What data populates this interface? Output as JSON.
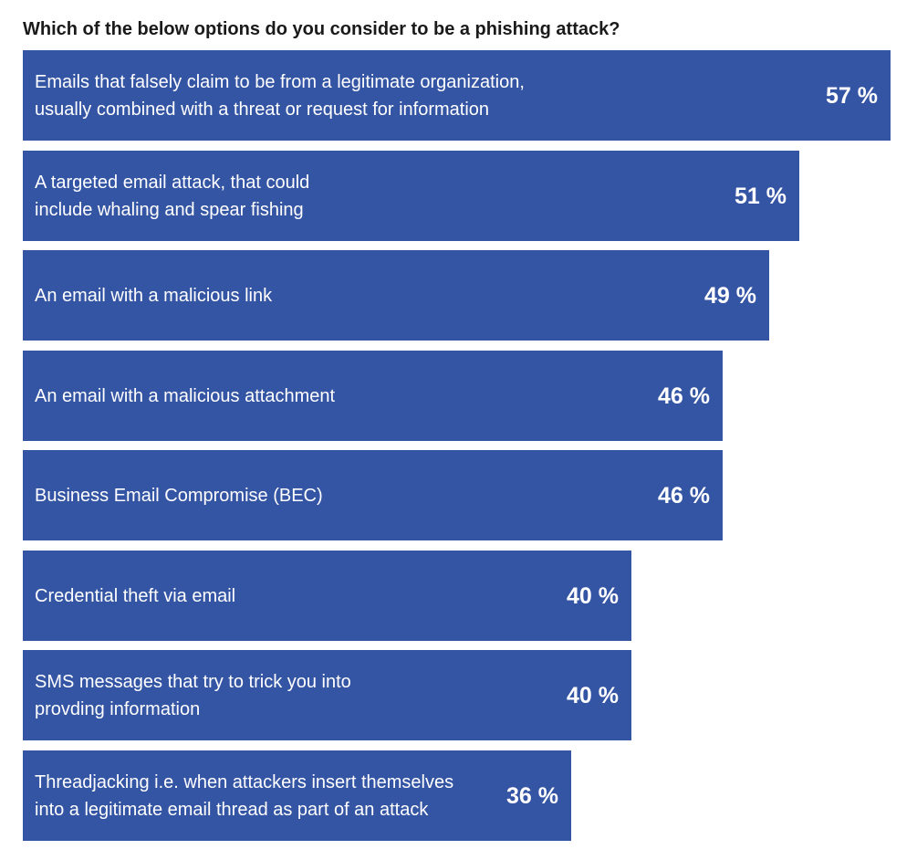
{
  "chart_data": {
    "type": "bar",
    "orientation": "horizontal",
    "title": "Which of the below options do you consider to be a phishing attack?",
    "xlabel": "",
    "ylabel": "",
    "unit": "%",
    "xlim": [
      0,
      57
    ],
    "grid": false,
    "legend": "none",
    "bar_color": "#3454a4",
    "label_color": "#ffffff",
    "categories": [
      "Emails that falsely claim to be from a legitimate organization,\nusually combined with a threat or request for information",
      "A targeted email attack, that could\ninclude whaling and spear fishing",
      "An email with a malicious link",
      "An email with a malicious attachment",
      "Business Email Compromise (BEC)",
      "Credential theft via email",
      "SMS messages that try to trick you into\nprovding information",
      "Threadjacking i.e. when attackers insert themselves\ninto a legitimate email thread as part of an attack"
    ],
    "values": [
      57,
      51,
      49,
      46,
      46,
      40,
      40,
      36
    ],
    "value_labels": [
      "57 %",
      "51 %",
      "49 %",
      "46 %",
      "46 %",
      "40 %",
      "40 %",
      "36 %"
    ]
  }
}
